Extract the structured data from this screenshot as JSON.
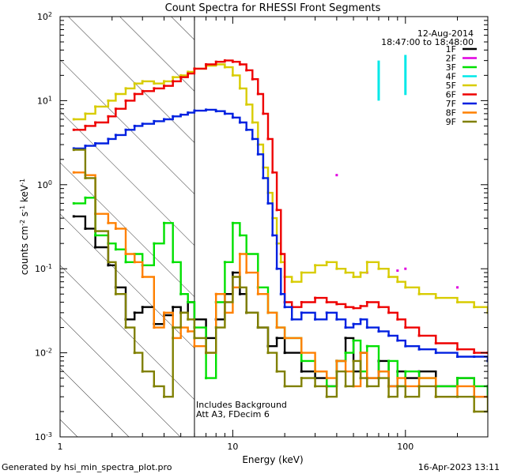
{
  "chart_data": {
    "type": "line",
    "title": "Count Spectra for RHESSI Front Segments",
    "xlabel": "Energy (keV)",
    "ylabel": "counts cm^-2 s^-1 keV^-1",
    "xscale": "log",
    "yscale": "log",
    "xlim": [
      1,
      300
    ],
    "ylim": [
      0.001,
      100
    ],
    "x_ticks": [
      {
        "value": 1,
        "label": "1"
      },
      {
        "value": 10,
        "label": "10"
      },
      {
        "value": 100,
        "label": "100"
      }
    ],
    "y_ticks": [
      {
        "value": 0.001,
        "label": "10",
        "exp": "-3"
      },
      {
        "value": 0.01,
        "label": "10",
        "exp": "-2"
      },
      {
        "value": 0.1,
        "label": "10",
        "exp": "-1"
      },
      {
        "value": 1,
        "label": "10",
        "exp": "0"
      },
      {
        "value": 10,
        "label": "10",
        "exp": "1"
      },
      {
        "value": 100,
        "label": "10",
        "exp": "2"
      }
    ],
    "date": "12-Aug-2014",
    "time_range": "18:47:00 to 18:48:00",
    "hatched_below_keV": 6,
    "annotations": [
      "Includes Background",
      "Att A3, FDecim 6"
    ],
    "legend_position": "top-right",
    "series": [
      {
        "name": "1F",
        "color": "#000000",
        "x": [
          1.2,
          1.4,
          1.6,
          1.9,
          2.1,
          2.4,
          2.7,
          3.0,
          3.5,
          4.0,
          4.5,
          5.0,
          5.5,
          6.0,
          7.0,
          8.0,
          9.0,
          10,
          11,
          12,
          14,
          16,
          18,
          20,
          25,
          30,
          35,
          40,
          45,
          50,
          55,
          60,
          70,
          80,
          90,
          100,
          120,
          150,
          200,
          250,
          300
        ],
        "values": [
          0.42,
          0.3,
          0.18,
          0.11,
          0.06,
          0.025,
          0.03,
          0.035,
          0.022,
          0.028,
          0.035,
          0.03,
          0.04,
          0.025,
          0.015,
          0.025,
          0.05,
          0.09,
          0.05,
          0.03,
          0.02,
          0.012,
          0.015,
          0.01,
          0.006,
          0.005,
          0.004,
          0.008,
          0.015,
          0.006,
          0.01,
          0.005,
          0.008,
          0.004,
          0.006,
          0.005,
          0.006,
          0.004,
          0.005,
          0.003,
          0.004
        ]
      },
      {
        "name": "2F",
        "color": "#e000e0",
        "x": [
          40,
          60,
          90,
          100,
          200
        ],
        "values": [
          1.3,
          0.09,
          0.095,
          0.1,
          0.06
        ]
      },
      {
        "name": "3F",
        "color": "#00e000",
        "x": [
          1.2,
          1.4,
          1.6,
          1.9,
          2.1,
          2.4,
          2.7,
          3.0,
          3.5,
          4.0,
          4.5,
          5.0,
          5.5,
          6.0,
          7.0,
          8.0,
          9.0,
          10,
          11,
          12,
          14,
          16,
          18,
          20,
          25,
          30,
          35,
          40,
          45,
          50,
          55,
          60,
          70,
          80,
          90,
          100,
          120,
          150,
          200,
          250,
          300
        ],
        "values": [
          0.6,
          0.7,
          0.25,
          0.2,
          0.17,
          0.12,
          0.15,
          0.11,
          0.2,
          0.35,
          0.12,
          0.05,
          0.04,
          0.02,
          0.005,
          0.04,
          0.12,
          0.35,
          0.25,
          0.15,
          0.06,
          0.03,
          0.02,
          0.015,
          0.008,
          0.006,
          0.004,
          0.008,
          0.01,
          0.014,
          0.006,
          0.012,
          0.006,
          0.008,
          0.004,
          0.006,
          0.005,
          0.004,
          0.005,
          0.004,
          0.003
        ]
      },
      {
        "name": "4F",
        "color": "#00e8e8",
        "x": [
          70,
          100
        ],
        "values": [
          30,
          35
        ]
      },
      {
        "name": "5F",
        "color": "#d8cc00",
        "x": [
          1.2,
          1.4,
          1.6,
          1.9,
          2.1,
          2.4,
          2.7,
          3.0,
          3.5,
          4.0,
          4.5,
          5.0,
          5.5,
          6.0,
          7.0,
          8.0,
          9.0,
          10,
          11,
          12,
          13,
          14,
          15,
          16,
          17,
          18,
          19,
          20,
          22,
          25,
          30,
          35,
          40,
          45,
          50,
          55,
          60,
          70,
          80,
          90,
          100,
          120,
          150,
          200,
          250,
          300
        ],
        "values": [
          6,
          7,
          8.5,
          10,
          12,
          14,
          16,
          17,
          16,
          17,
          19,
          20,
          22,
          24,
          26,
          27,
          25,
          20,
          14,
          9,
          5.5,
          3,
          1.6,
          0.8,
          0.4,
          0.2,
          0.12,
          0.08,
          0.07,
          0.09,
          0.11,
          0.12,
          0.1,
          0.09,
          0.08,
          0.09,
          0.12,
          0.1,
          0.08,
          0.07,
          0.06,
          0.05,
          0.045,
          0.04,
          0.035,
          0.03
        ]
      },
      {
        "name": "6F",
        "color": "#ee0000",
        "x": [
          1.2,
          1.4,
          1.6,
          1.9,
          2.1,
          2.4,
          2.7,
          3.0,
          3.5,
          4.0,
          4.5,
          5.0,
          5.5,
          6.0,
          7.0,
          8.0,
          9.0,
          10,
          11,
          12,
          13,
          14,
          15,
          16,
          17,
          18,
          19,
          20,
          22,
          25,
          30,
          35,
          40,
          45,
          50,
          55,
          60,
          70,
          80,
          90,
          100,
          120,
          150,
          200,
          250,
          300
        ],
        "values": [
          4.5,
          5,
          5.5,
          6.5,
          8,
          10,
          12,
          13,
          14,
          15,
          17,
          19,
          21,
          24,
          27,
          29,
          30,
          29,
          27,
          23,
          18,
          12,
          7,
          3.5,
          1.4,
          0.5,
          0.15,
          0.04,
          0.035,
          0.04,
          0.045,
          0.04,
          0.038,
          0.035,
          0.034,
          0.036,
          0.04,
          0.035,
          0.03,
          0.025,
          0.02,
          0.016,
          0.013,
          0.011,
          0.01,
          0.01
        ]
      },
      {
        "name": "7F",
        "color": "#0020e0",
        "x": [
          1.2,
          1.4,
          1.6,
          1.9,
          2.1,
          2.4,
          2.7,
          3.0,
          3.5,
          4.0,
          4.5,
          5.0,
          5.5,
          6.0,
          7.0,
          8.0,
          9.0,
          10,
          11,
          12,
          13,
          14,
          15,
          16,
          17,
          18,
          19,
          20,
          22,
          25,
          30,
          35,
          40,
          45,
          50,
          55,
          60,
          70,
          80,
          90,
          100,
          120,
          150,
          200,
          250,
          300
        ],
        "values": [
          2.7,
          2.9,
          3.1,
          3.5,
          3.9,
          4.5,
          5,
          5.3,
          5.7,
          6,
          6.5,
          6.8,
          7.2,
          7.6,
          7.8,
          7.5,
          7,
          6.3,
          5.5,
          4.5,
          3.5,
          2.3,
          1.2,
          0.6,
          0.25,
          0.1,
          0.05,
          0.035,
          0.025,
          0.03,
          0.025,
          0.03,
          0.025,
          0.02,
          0.022,
          0.025,
          0.02,
          0.018,
          0.016,
          0.014,
          0.012,
          0.011,
          0.01,
          0.009,
          0.009,
          0.008
        ]
      },
      {
        "name": "8F",
        "color": "#ff8000",
        "x": [
          1.2,
          1.4,
          1.6,
          1.9,
          2.1,
          2.4,
          2.7,
          3.0,
          3.5,
          4.0,
          4.5,
          5.0,
          5.5,
          6.0,
          7.0,
          8.0,
          9.0,
          10,
          11,
          12,
          14,
          16,
          18,
          20,
          25,
          30,
          35,
          40,
          45,
          50,
          55,
          60,
          70,
          80,
          90,
          100,
          120,
          150,
          200,
          250,
          300
        ],
        "values": [
          1.4,
          1.3,
          0.45,
          0.35,
          0.3,
          0.15,
          0.12,
          0.08,
          0.02,
          0.03,
          0.015,
          0.02,
          0.018,
          0.012,
          0.01,
          0.05,
          0.03,
          0.06,
          0.15,
          0.09,
          0.05,
          0.03,
          0.02,
          0.015,
          0.01,
          0.006,
          0.005,
          0.008,
          0.006,
          0.004,
          0.01,
          0.005,
          0.006,
          0.004,
          0.005,
          0.004,
          0.005,
          0.003,
          0.004,
          0.003,
          0.003
        ]
      },
      {
        "name": "9F",
        "color": "#808000",
        "x": [
          1.2,
          1.4,
          1.6,
          1.9,
          2.1,
          2.4,
          2.7,
          3.0,
          3.5,
          4.0,
          4.5,
          5.0,
          5.5,
          6.0,
          7.0,
          8.0,
          9.0,
          10,
          11,
          12,
          14,
          16,
          18,
          20,
          25,
          30,
          35,
          40,
          45,
          50,
          55,
          60,
          70,
          80,
          90,
          100,
          120,
          150,
          200,
          250,
          300
        ],
        "values": [
          2.6,
          1.2,
          0.28,
          0.12,
          0.05,
          0.02,
          0.01,
          0.006,
          0.004,
          0.003,
          0.02,
          0.03,
          0.025,
          0.015,
          0.01,
          0.02,
          0.04,
          0.08,
          0.06,
          0.03,
          0.02,
          0.01,
          0.006,
          0.004,
          0.005,
          0.004,
          0.003,
          0.006,
          0.004,
          0.008,
          0.005,
          0.004,
          0.005,
          0.003,
          0.004,
          0.003,
          0.004,
          0.003,
          0.003,
          0.002,
          0.003
        ]
      }
    ]
  },
  "footer": {
    "generated_by": "Generated by hsi_min_spectra_plot.pro",
    "timestamp": "16-Apr-2023 13:11"
  }
}
